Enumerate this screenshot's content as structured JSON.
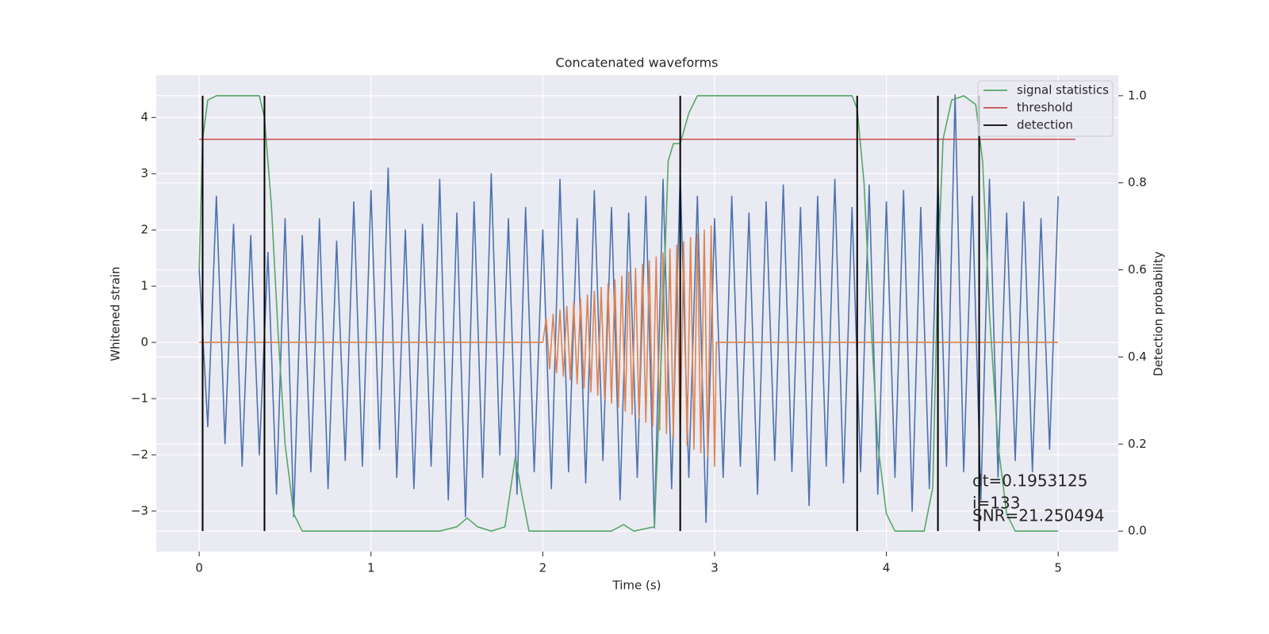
{
  "chart_data": {
    "type": "line",
    "title": "Concatenated waveforms",
    "xlabel": "Time (s)",
    "ylabel": "Whitened strain",
    "y2label": "Detection probability",
    "xlim": [
      -0.25,
      5.35
    ],
    "ylim": [
      -3.72,
      4.75
    ],
    "y2lim": [
      -0.047,
      1.047
    ],
    "xticks": [
      0,
      1,
      2,
      3,
      4,
      5
    ],
    "yticks": [
      {
        "value": -3,
        "label": "−3"
      },
      {
        "value": -2,
        "label": "−2"
      },
      {
        "value": -1,
        "label": "−1"
      },
      0,
      1,
      2,
      3,
      4
    ],
    "y2ticks": [
      {
        "value": 0,
        "label": "0.0"
      },
      {
        "value": 0.2,
        "label": "0.2"
      },
      {
        "value": 0.4,
        "label": "0.4"
      },
      {
        "value": 0.6,
        "label": "0.6"
      },
      {
        "value": 0.8,
        "label": "0.8"
      },
      {
        "value": 1,
        "label": "1.0"
      }
    ],
    "grid": true,
    "legend": "upper right",
    "annotations": [
      "dt=0.1953125",
      "i=133",
      "SNR=21.250494"
    ],
    "series": [
      {
        "color": "#4c72b0",
        "style": "line",
        "axis": "y",
        "x": [
          0,
          0.05,
          0.1,
          0.15,
          0.2,
          0.25,
          0.3,
          0.35,
          0.4,
          0.45,
          0.5,
          0.55,
          0.6,
          0.65,
          0.7,
          0.75,
          0.8,
          0.85,
          0.9,
          0.95,
          1,
          1.05,
          1.1,
          1.15,
          1.2,
          1.25,
          1.3,
          1.35,
          1.4,
          1.45,
          1.5,
          1.55,
          1.6,
          1.65,
          1.7,
          1.75,
          1.8,
          1.85,
          1.9,
          1.95,
          2,
          2.05,
          2.1,
          2.15,
          2.2,
          2.25,
          2.3,
          2.35,
          2.4,
          2.45,
          2.5,
          2.55,
          2.6,
          2.65,
          2.7,
          2.75,
          2.8,
          2.85,
          2.9,
          2.95,
          3,
          3.05,
          3.1,
          3.15,
          3.2,
          3.25,
          3.3,
          3.35,
          3.4,
          3.45,
          3.5,
          3.55,
          3.6,
          3.65,
          3.7,
          3.75,
          3.8,
          3.85,
          3.9,
          3.95,
          4,
          4.05,
          4.1,
          4.15,
          4.2,
          4.25,
          4.3,
          4.35,
          4.4,
          4.45,
          4.5,
          4.55,
          4.6,
          4.65,
          4.7,
          4.75,
          4.8,
          4.85,
          4.9,
          4.95,
          5
        ],
        "values": [
          1.3,
          -1.5,
          2.6,
          -1.8,
          2.1,
          -2.2,
          1.9,
          -2.0,
          1.6,
          -2.7,
          2.2,
          -3.1,
          1.9,
          -2.3,
          2.2,
          -2.6,
          1.8,
          -2.1,
          2.5,
          -2.2,
          2.7,
          -1.9,
          3.1,
          -2.4,
          2.0,
          -2.6,
          2.1,
          -2.2,
          2.9,
          -2.8,
          2.3,
          -3.1,
          2.5,
          -2.4,
          3.0,
          -2.0,
          2.2,
          -2.7,
          2.4,
          -2.3,
          2.0,
          -2.6,
          2.9,
          -2.3,
          2.2,
          -2.5,
          2.7,
          -2.1,
          2.4,
          -2.8,
          2.3,
          -2.4,
          2.6,
          -3.3,
          2.9,
          -2.6,
          3.0,
          -2.4,
          2.6,
          -3.2,
          2.2,
          -2.4,
          2.6,
          -2.2,
          2.3,
          -2.7,
          2.5,
          -2.1,
          2.8,
          -2.3,
          2.4,
          -2.9,
          2.6,
          -2.2,
          2.9,
          -2.5,
          2.4,
          -2.3,
          2.8,
          -2.7,
          2.5,
          -2.4,
          2.7,
          -3.0,
          2.4,
          -2.6,
          2.9,
          -2.2,
          4.4,
          -2.3,
          2.6,
          -2.8,
          2.9,
          -2.4,
          2.3,
          -2.1,
          2.5,
          -2.3,
          2.2,
          -1.9,
          2.6
        ]
      },
      {
        "color": "#dd8452",
        "style": "line",
        "axis": "y",
        "x": [
          0,
          2,
          2.02,
          2.04,
          2.06,
          2.08,
          2.1,
          2.12,
          2.14,
          2.16,
          2.18,
          2.2,
          2.22,
          2.24,
          2.26,
          2.28,
          2.3,
          2.32,
          2.34,
          2.36,
          2.38,
          2.4,
          2.42,
          2.44,
          2.46,
          2.48,
          2.5,
          2.52,
          2.54,
          2.56,
          2.58,
          2.6,
          2.62,
          2.64,
          2.66,
          2.68,
          2.7,
          2.72,
          2.74,
          2.76,
          2.78,
          2.8,
          2.82,
          2.84,
          2.86,
          2.88,
          2.9,
          2.92,
          2.94,
          2.96,
          2.98,
          3,
          3.01,
          5
        ],
        "values": [
          0,
          0,
          0.43,
          -0.47,
          0.5,
          -0.54,
          0.57,
          -0.6,
          0.64,
          -0.67,
          0.71,
          -0.74,
          0.77,
          -0.81,
          0.84,
          -0.88,
          0.91,
          -0.94,
          0.98,
          -1.01,
          1.05,
          -1.08,
          1.11,
          -1.15,
          1.18,
          -1.22,
          1.25,
          -1.28,
          1.32,
          -1.35,
          1.39,
          -1.42,
          1.45,
          -1.49,
          1.52,
          -1.56,
          1.59,
          -1.62,
          1.66,
          -1.69,
          1.73,
          -1.76,
          1.79,
          -1.83,
          1.86,
          -1.9,
          1.93,
          -1.96,
          2.0,
          -2.03,
          2.07,
          -2.2,
          0,
          0
        ]
      },
      {
        "name": "signal statistics",
        "color": "#55a868",
        "style": "line",
        "axis": "y2",
        "x": [
          0,
          0.02,
          0.05,
          0.1,
          0.35,
          0.38,
          0.42,
          0.46,
          0.5,
          0.55,
          0.6,
          1.4,
          1.5,
          1.56,
          1.62,
          1.7,
          1.78,
          1.84,
          1.88,
          1.92,
          2.4,
          2.47,
          2.53,
          2.65,
          2.7,
          2.73,
          2.76,
          2.8,
          2.85,
          2.9,
          3.8,
          3.83,
          3.87,
          3.9,
          3.95,
          4,
          4.05,
          4.22,
          4.27,
          4.3,
          4.33,
          4.38,
          4.45,
          4.52,
          4.56,
          4.6,
          4.65,
          4.7,
          4.75,
          5
        ],
        "values": [
          0.6,
          0.9,
          0.99,
          1,
          1,
          0.95,
          0.75,
          0.45,
          0.2,
          0.04,
          0,
          0,
          0.01,
          0.03,
          0.01,
          0,
          0.01,
          0.17,
          0.08,
          0,
          0,
          0.015,
          0,
          0.01,
          0.5,
          0.85,
          0.89,
          0.89,
          0.96,
          1,
          1,
          0.97,
          0.8,
          0.55,
          0.2,
          0.04,
          0,
          0,
          0.1,
          0.6,
          0.9,
          0.99,
          1,
          0.98,
          0.85,
          0.5,
          0.2,
          0.04,
          0,
          0
        ]
      },
      {
        "name": "threshold",
        "color": "#c44e52",
        "style": "line",
        "axis": "y2",
        "x": [
          0,
          5.1
        ],
        "values": [
          0.9,
          0.9
        ]
      },
      {
        "name": "detection",
        "color": "#000000",
        "style": "vlines",
        "axis": "y2",
        "x": [
          0.02,
          0.38,
          2.8,
          3.83,
          4.3,
          4.54
        ],
        "ymin": 0,
        "ymax": 1
      }
    ]
  }
}
